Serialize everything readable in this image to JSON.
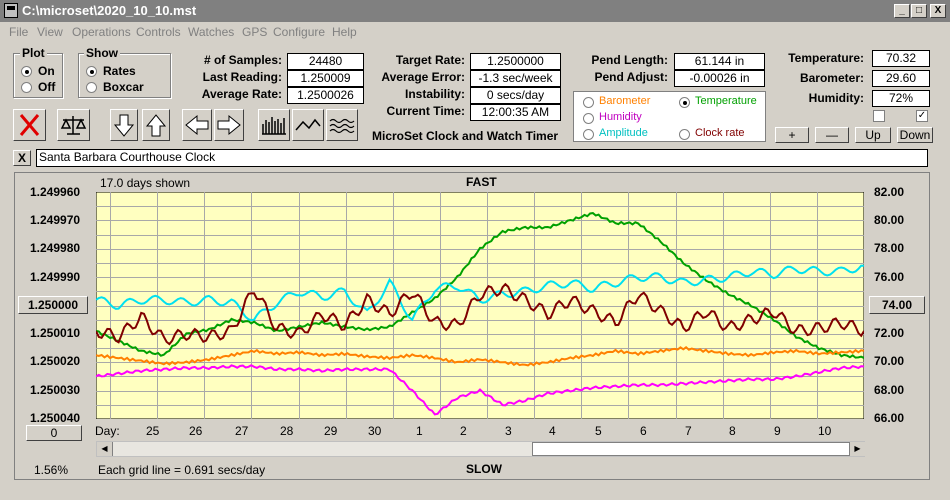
{
  "window": {
    "title": "C:\\microset\\2020_10_10.mst",
    "buttons": {
      "minimize": "_",
      "maximize": "□",
      "close": "X"
    }
  },
  "menu": [
    "File",
    "View",
    "Operations",
    "Controls",
    "Watches",
    "GPS",
    "Configure",
    "Help"
  ],
  "plot_group": {
    "title": "Plot",
    "options": [
      {
        "label": "On",
        "selected": true
      },
      {
        "label": "Off",
        "selected": false
      }
    ]
  },
  "show_group": {
    "title": "Show",
    "options": [
      {
        "label": "Rates",
        "selected": true
      },
      {
        "label": "Boxcar",
        "selected": false
      }
    ]
  },
  "stats": {
    "samples_label": "# of Samples:",
    "samples": "24480",
    "last_label": "Last Reading:",
    "last": "1.250009",
    "avg_rate_label": "Average Rate:",
    "avg_rate": "1.2500026",
    "target_label": "Target Rate:",
    "target": "1.2500000",
    "avg_err_label": "Average Error:",
    "avg_err": "-1.3 sec/week",
    "instab_label": "Instability:",
    "instab": "0 secs/day",
    "time_label": "Current Time:",
    "time": "12:00:35 AM",
    "pend_len_label": "Pend Length:",
    "pend_len": "61.144 in",
    "pend_adj_label": "Pend Adjust:",
    "pend_adj": "-0.00026 in",
    "temp_label": "Temperature:",
    "temp": "70.32",
    "baro_label": "Barometer:",
    "baro": "29.60",
    "hum_label": "Humidity:",
    "hum": "72%"
  },
  "app_caption": "MicroSet Clock and Watch Timer",
  "sensor_options": [
    {
      "label": "Barometer",
      "color": "#ff8000",
      "selected": false
    },
    {
      "label": "Temperature",
      "color": "#00a000",
      "selected": true
    },
    {
      "label": "Humidity",
      "color": "#c000c0",
      "selected": false
    },
    {
      "label": "Clock rate",
      "color": "#800000",
      "selected": false
    },
    {
      "label": "Amplitude",
      "color": "#00c0c0",
      "selected": false
    }
  ],
  "small_buttons": {
    "plus": "+",
    "minus": "—",
    "up": "Up",
    "down": "Down"
  },
  "checkboxes": {
    "left_checked": false,
    "right_checked": true
  },
  "description_close": "X",
  "description": "Santa Barbara Courthouse Clock",
  "graph": {
    "days_shown": "17.0 days shown",
    "top_label": "FAST",
    "bottom_label": "SLOW",
    "left_ticks": [
      "1.249960",
      "1.249970",
      "1.249980",
      "1.249990",
      "1.250000",
      "1.250010",
      "1.250020",
      "1.250030",
      "1.250040"
    ],
    "left_highlight": "1.250000",
    "right_ticks": [
      "82.00",
      "80.00",
      "78.00",
      "76.00",
      "74.00",
      "72.00",
      "70.00",
      "68.00",
      "66.00"
    ],
    "right_highlight": "74.00",
    "day_label": "Day:",
    "days": [
      "25",
      "26",
      "27",
      "28",
      "29",
      "30",
      "1",
      "2",
      "3",
      "4",
      "5",
      "6",
      "7",
      "8",
      "9",
      "10"
    ],
    "offset_value": "0",
    "percent": "1.56%",
    "grid_note": "Each grid line = 0.691 secs/day",
    "background": "#ffffc0"
  },
  "chart_data": {
    "type": "line",
    "title": "",
    "xlabel": "Day:",
    "ylabel": "",
    "x_ticks": [
      "25",
      "26",
      "27",
      "28",
      "29",
      "30",
      "1",
      "2",
      "3",
      "4",
      "5",
      "6",
      "7",
      "8",
      "9",
      "10"
    ],
    "ylim_left": [
      1.24996,
      1.25004
    ],
    "ylim_right": [
      66,
      82
    ],
    "series": [
      {
        "color": "#00a000",
        "axis": "right",
        "values": [
          72.2,
          71.5,
          70.8,
          70.5,
          72.0,
          72.3,
          73.0,
          72.8,
          72.2,
          72.5,
          72.8,
          72.5,
          72.3,
          72.5,
          73.5,
          74.5,
          76.0,
          78.0,
          79.2,
          79.5,
          79.5,
          80.0,
          80.5,
          79.8,
          79.8,
          78.5,
          77.0,
          75.8,
          74.8,
          74.0,
          73.0,
          71.8,
          71.0,
          70.5,
          70.3
        ]
      },
      {
        "color": "#00e0f0",
        "axis": "left",
        "values": [
          1.249998,
          1.25,
          1.249998,
          1.249998,
          1.249999,
          1.249998,
          1.249999,
          1.250005,
          1.249999,
          1.249995,
          1.249997,
          1.249995,
          1.250003,
          1.249992,
          1.250005,
          1.249994,
          1.249993,
          1.249998,
          1.249996,
          1.249995,
          1.249993,
          1.249992,
          1.249994,
          1.249992,
          1.24999,
          1.24999,
          1.249992,
          1.249991,
          1.24999,
          1.249988,
          1.249989,
          1.249987,
          1.249988,
          1.249988,
          1.249986
        ]
      },
      {
        "color": "#800000",
        "axis": "left",
        "values": [
          1.250009,
          1.250011,
          1.250004,
          1.250012,
          1.25001,
          1.250011,
          1.250009,
          1.249994,
          1.250008,
          1.25001,
          1.250003,
          1.250007,
          1.249998,
          1.250003,
          1.249995,
          1.250006,
          1.250007,
          1.249996,
          1.249994,
          1.249998,
          1.250003,
          1.249998,
          1.250002,
          1.250006,
          1.249996,
          1.250002,
          1.250008,
          1.250002,
          1.250008,
          1.250005,
          1.250002,
          1.250009,
          1.250008,
          1.250006,
          1.250009
        ]
      },
      {
        "color": "#ff8000",
        "axis": "right",
        "values": [
          70.5,
          70.3,
          70.1,
          69.9,
          70.0,
          70.2,
          70.5,
          70.8,
          70.6,
          70.7,
          70.5,
          70.6,
          70.4,
          70.3,
          70.5,
          70.3,
          70.0,
          70.2,
          70.0,
          69.8,
          70.0,
          70.3,
          70.5,
          70.8,
          70.6,
          70.8,
          71.0,
          70.8,
          70.6,
          70.5,
          70.7,
          70.8,
          70.6,
          70.7,
          70.8
        ]
      },
      {
        "color": "#ff00ff",
        "axis": "right",
        "values": [
          69.0,
          69.2,
          69.4,
          69.5,
          69.6,
          69.6,
          69.7,
          69.7,
          69.5,
          69.5,
          69.4,
          69.5,
          69.5,
          69.5,
          68.0,
          66.3,
          67.5,
          68.0,
          67.0,
          67.3,
          67.8,
          68.0,
          68.2,
          68.3,
          68.4,
          68.4,
          68.5,
          68.6,
          68.7,
          68.8,
          68.8,
          69.0,
          69.3,
          69.6,
          69.7
        ]
      }
    ]
  }
}
